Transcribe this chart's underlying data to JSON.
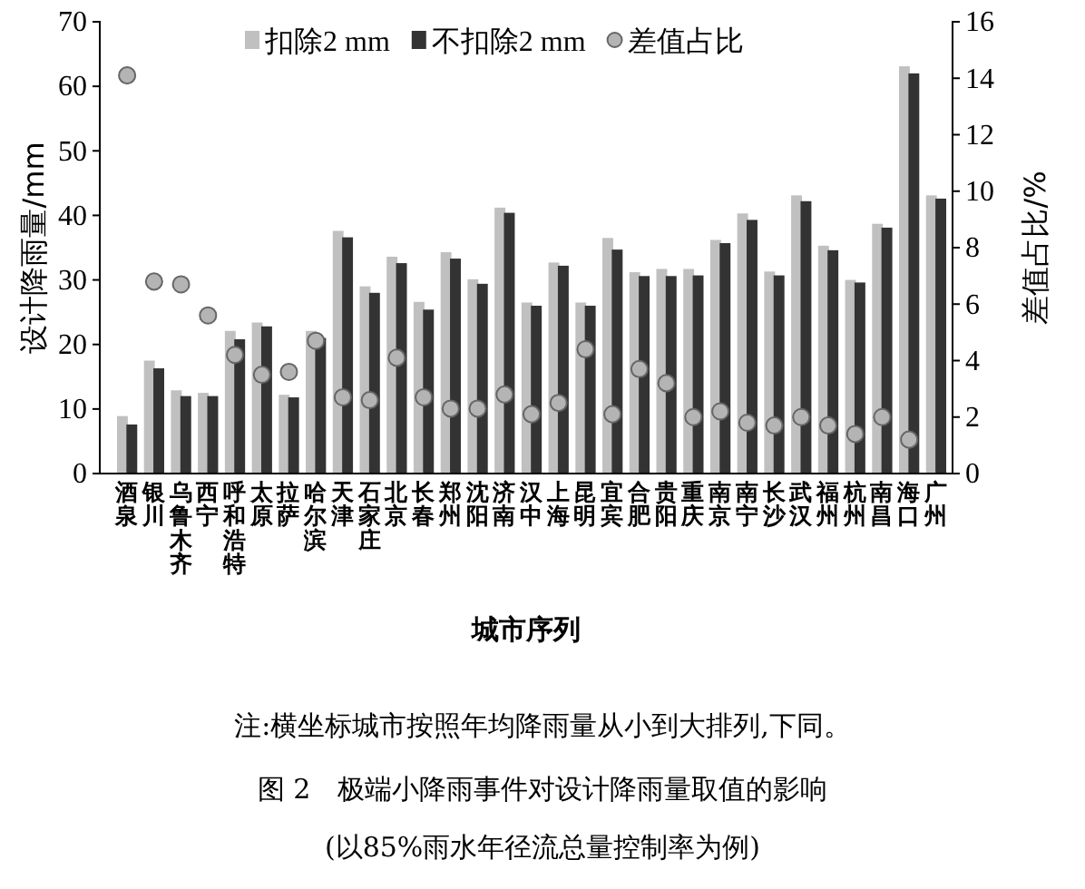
{
  "chart_data": {
    "type": "bar",
    "title": "图 2　极端小降雨事件对设计降雨量取值的影响",
    "subtitle": "(以85%雨水年径流总量控制率为例)",
    "xlabel": "城市序列",
    "ylabel": "设计降雨量/mm",
    "y2label": "差值占比/%",
    "annotations": [
      "注:横坐标城市按照年均降雨量从小到大排列,下同。"
    ],
    "categories": [
      "酒泉",
      "银川",
      "乌鲁木齐",
      "西宁",
      "呼和浩特",
      "太原",
      "拉萨",
      "哈尔滨",
      "天津",
      "石家庄",
      "北京",
      "长春",
      "郑州",
      "沈阳",
      "济南",
      "汉中",
      "上海",
      "昆明",
      "宜宾",
      "合肥",
      "贵阳",
      "重庆",
      "南京",
      "南宁",
      "长沙",
      "武汉",
      "福州",
      "杭州",
      "南昌",
      "海口",
      "广州"
    ],
    "series": [
      {
        "name": "扣除2 mm",
        "color": "#c0c0c0",
        "values": [
          8.9,
          17.5,
          12.9,
          12.5,
          22.1,
          23.4,
          12.2,
          22.1,
          37.6,
          29.0,
          33.6,
          26.6,
          34.3,
          30.1,
          41.2,
          26.5,
          32.7,
          26.5,
          36.5,
          31.2,
          31.7,
          31.7,
          36.2,
          40.3,
          31.3,
          43.1,
          35.3,
          30.0,
          38.7,
          63.1,
          43.1
        ]
      },
      {
        "name": "不扣除2 mm",
        "color": "#333333",
        "values": [
          7.6,
          16.3,
          12.0,
          12.0,
          20.8,
          22.8,
          11.8,
          21.0,
          36.6,
          28.0,
          32.6,
          25.4,
          33.3,
          29.4,
          40.4,
          26.0,
          32.2,
          26.0,
          34.7,
          30.6,
          30.6,
          30.7,
          35.7,
          39.3,
          30.7,
          42.2,
          34.6,
          29.6,
          38.1,
          62.0,
          42.6
        ]
      },
      {
        "name": "差值占比",
        "type": "scatter",
        "axis": "y2",
        "color": "#b4b4b4",
        "marker": "circle",
        "values": [
          14.1,
          6.8,
          6.7,
          5.6,
          4.2,
          3.5,
          3.6,
          4.7,
          2.7,
          2.6,
          4.1,
          2.7,
          2.3,
          2.3,
          2.8,
          2.1,
          2.5,
          4.4,
          2.1,
          3.7,
          3.2,
          2.0,
          2.2,
          1.8,
          1.7,
          2.0,
          1.7,
          1.4,
          2.0,
          1.2,
          null
        ]
      }
    ],
    "ylim": [
      0,
      70
    ],
    "yticks": [
      0,
      10,
      20,
      30,
      40,
      50,
      60,
      70
    ],
    "y2lim": [
      0,
      16
    ],
    "y2ticks": [
      0,
      2,
      4,
      6,
      8,
      10,
      12,
      14,
      16
    ],
    "grid": false,
    "legend": "top right"
  }
}
